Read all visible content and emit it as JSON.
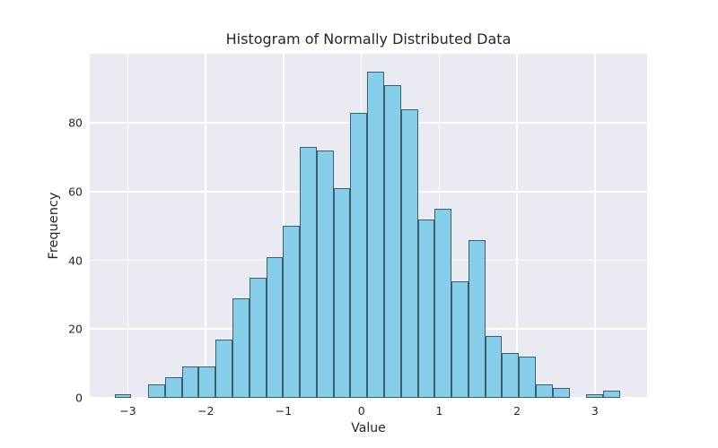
{
  "chart_data": {
    "type": "bar",
    "chart_kind": "histogram",
    "title": "Histogram of Normally Distributed Data",
    "xlabel": "Value",
    "ylabel": "Frequency",
    "bin_start": -3.172,
    "bin_width": 0.2165,
    "counts": [
      1,
      0,
      4,
      6,
      9,
      9,
      17,
      29,
      35,
      41,
      50,
      73,
      72,
      61,
      83,
      95,
      91,
      84,
      52,
      55,
      34,
      46,
      18,
      13,
      12,
      4,
      3,
      0,
      1,
      2
    ],
    "xlim": [
      -3.49,
      3.67
    ],
    "ylim": [
      0,
      100.1
    ],
    "xticks": [
      {
        "value": -3,
        "label": "−3"
      },
      {
        "value": -2,
        "label": "−2"
      },
      {
        "value": -1,
        "label": "−1"
      },
      {
        "value": 0,
        "label": "0"
      },
      {
        "value": 1,
        "label": "1"
      },
      {
        "value": 2,
        "label": "2"
      },
      {
        "value": 3,
        "label": "3"
      }
    ],
    "yticks": [
      {
        "value": 0,
        "label": "0"
      },
      {
        "value": 20,
        "label": "20"
      },
      {
        "value": 40,
        "label": "40"
      },
      {
        "value": 60,
        "label": "60"
      },
      {
        "value": 80,
        "label": "80"
      }
    ],
    "grid": true,
    "legend": "none",
    "colors": {
      "figure_background": "#FFFFFF",
      "axes_background": "#EAEAF2",
      "grid": "#FFFFFF",
      "bar_fill": "#87CEEB",
      "bar_edge": "rgba(0,0,0,0.55)",
      "text": "#262626"
    }
  }
}
